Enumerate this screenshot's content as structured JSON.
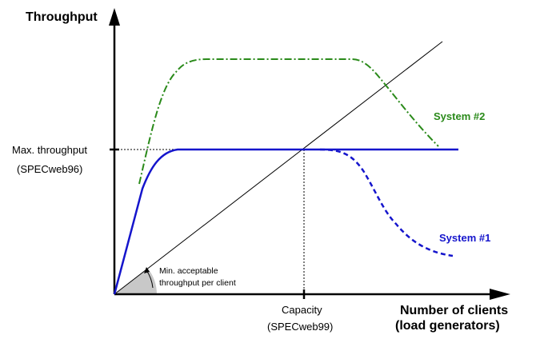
{
  "y_axis_title": "Throughput",
  "x_axis_title": {
    "line1": "Number of clients",
    "line2": "(load generators)"
  },
  "max_throughput": {
    "line1": "Max. throughput",
    "line2": "(SPECweb96)"
  },
  "capacity": {
    "line1": "Capacity",
    "line2": "(SPECweb99)"
  },
  "min_acceptable": {
    "line1": "Min. acceptable",
    "line2": "throughput per client"
  },
  "system1": {
    "label": "System #1",
    "color": "#1515cc"
  },
  "system2": {
    "label": "System #2",
    "color": "#2a8a1a"
  },
  "axis_color": "#000000",
  "wedge_color": "#c8c8c8"
}
